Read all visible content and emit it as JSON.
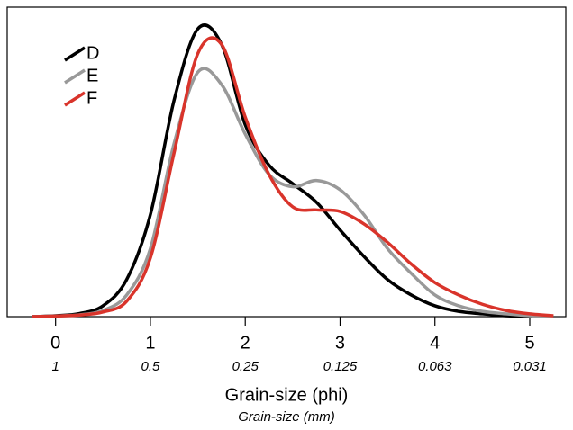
{
  "chart_data": {
    "type": "line",
    "xlabel": "Grain-size (phi)",
    "x2label": "Grain-size (mm)",
    "x": [
      -0.25,
      0,
      0.25,
      0.5,
      0.75,
      1,
      1.25,
      1.5,
      1.75,
      2,
      2.25,
      2.5,
      2.75,
      3,
      3.25,
      3.5,
      3.75,
      4,
      4.25,
      4.5,
      4.75,
      5,
      5.25
    ],
    "series": [
      {
        "name": "D",
        "color": "#000000",
        "values": [
          0,
          0.003,
          0.01,
          0.035,
          0.12,
          0.33,
          0.7,
          0.93,
          0.88,
          0.62,
          0.49,
          0.43,
          0.37,
          0.28,
          0.195,
          0.12,
          0.07,
          0.035,
          0.017,
          0.009,
          0.003,
          0,
          0
        ]
      },
      {
        "name": "E",
        "color": "#999999",
        "values": [
          0,
          0.002,
          0.006,
          0.02,
          0.07,
          0.22,
          0.56,
          0.79,
          0.75,
          0.59,
          0.46,
          0.42,
          0.44,
          0.41,
          0.33,
          0.22,
          0.14,
          0.07,
          0.035,
          0.017,
          0.009,
          0.003,
          0
        ]
      },
      {
        "name": "F",
        "color": "#d9342b",
        "values": [
          0,
          0.002,
          0.005,
          0.015,
          0.05,
          0.19,
          0.53,
          0.85,
          0.88,
          0.645,
          0.46,
          0.355,
          0.345,
          0.34,
          0.3,
          0.24,
          0.17,
          0.11,
          0.07,
          0.04,
          0.02,
          0.009,
          0.003
        ]
      }
    ],
    "xlim": [
      -0.51,
      5.38
    ],
    "ylim": [
      0,
      1
    ],
    "xticks": [
      0,
      1,
      2,
      3,
      4,
      5
    ],
    "x2ticks": [
      {
        "value": 0,
        "label": "1"
      },
      {
        "value": 1,
        "label": "0.5"
      },
      {
        "value": 2,
        "label": "0.25"
      },
      {
        "value": 3,
        "label": "0.125"
      },
      {
        "value": 4,
        "label": "0.063"
      },
      {
        "value": 5,
        "label": "0.031"
      }
    ],
    "legend": "upper left",
    "grid": false
  }
}
